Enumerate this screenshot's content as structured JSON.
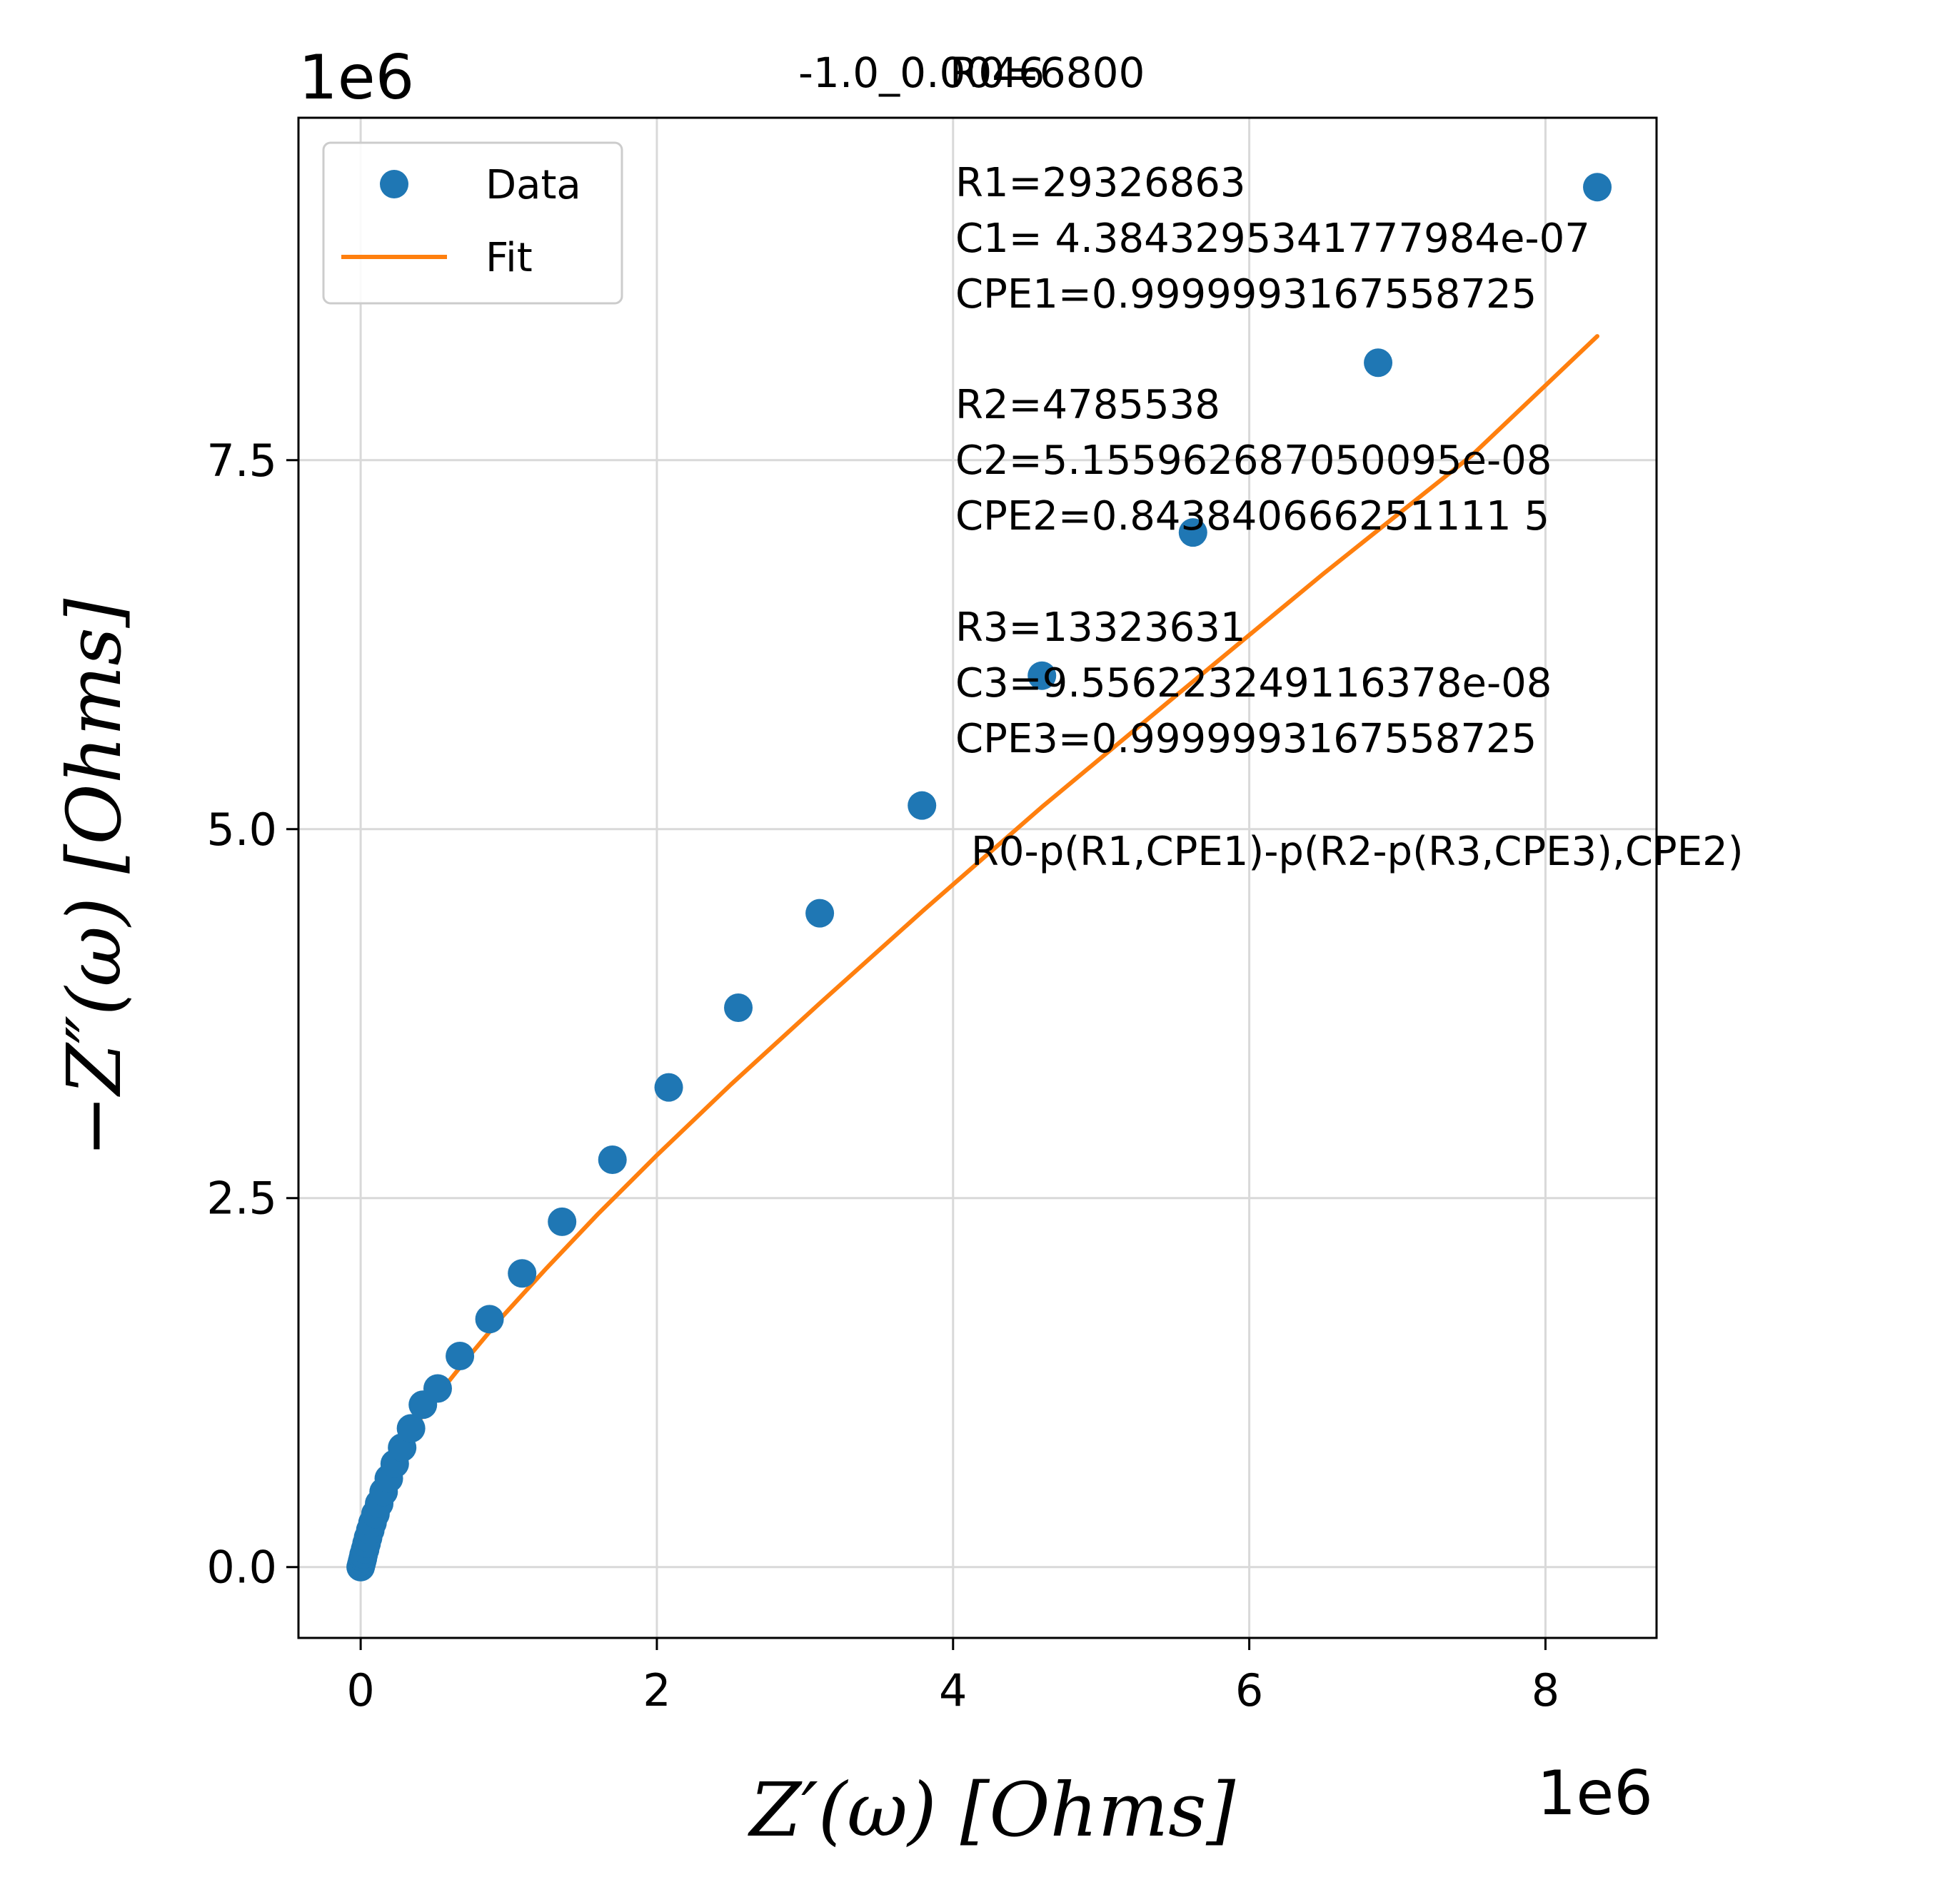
{
  "chart_data": {
    "type": "scatter",
    "title_overlap": [
      "-1.0_0.0046",
      "R0=6800"
    ],
    "xlabel": "Z′(ω) [Ohms]",
    "ylabel": "−Z″(ω) [Ohms]",
    "x_offset_label": "1e6",
    "y_offset_label": "1e6",
    "xlim": [
      -0.42,
      8.75
    ],
    "ylim": [
      -0.48,
      9.82
    ],
    "xticks": [
      0,
      2,
      4,
      6,
      8
    ],
    "xtick_labels": [
      "0",
      "2",
      "4",
      "6",
      "8"
    ],
    "yticks": [
      0.0,
      2.5,
      5.0,
      7.5
    ],
    "ytick_labels": [
      "0.0",
      "2.5",
      "5.0",
      "7.5"
    ],
    "grid": true,
    "legend": {
      "placement": "top-left",
      "entries": [
        {
          "label": "Data",
          "color": "#1f77b4",
          "marker": "circle"
        },
        {
          "label": "Fit",
          "color": "#ff7f0e",
          "marker": "line"
        }
      ]
    },
    "series": [
      {
        "name": "Data",
        "kind": "points",
        "color": "#1f77b4",
        "x": [
          0.0,
          0.005,
          0.01,
          0.015,
          0.02,
          0.03,
          0.04,
          0.05,
          0.065,
          0.08,
          0.1,
          0.125,
          0.155,
          0.19,
          0.23,
          0.28,
          0.34,
          0.42,
          0.52,
          0.67,
          0.87,
          1.09,
          1.36,
          1.7,
          2.08,
          2.55,
          3.1,
          3.79,
          4.6,
          5.62,
          6.87,
          8.35
        ],
        "y": [
          0.0,
          0.02,
          0.04,
          0.06,
          0.085,
          0.12,
          0.16,
          0.2,
          0.25,
          0.3,
          0.36,
          0.43,
          0.51,
          0.6,
          0.7,
          0.81,
          0.94,
          1.1,
          1.21,
          1.43,
          1.68,
          1.99,
          2.34,
          2.76,
          3.25,
          3.79,
          4.43,
          5.16,
          6.04,
          7.01,
          8.16,
          9.35
        ]
      },
      {
        "name": "Fit",
        "kind": "line",
        "color": "#ff7f0e",
        "x": [
          0.0,
          0.01,
          0.03,
          0.06,
          0.1,
          0.16,
          0.24,
          0.35,
          0.5,
          0.7,
          0.95,
          1.25,
          1.6,
          2.0,
          2.5,
          3.1,
          3.8,
          4.6,
          5.5,
          6.5,
          7.5,
          8.35
        ],
        "y": [
          0.0,
          0.08,
          0.18,
          0.3,
          0.42,
          0.57,
          0.74,
          0.93,
          1.14,
          1.39,
          1.69,
          2.02,
          2.39,
          2.79,
          3.27,
          3.82,
          4.45,
          5.15,
          5.9,
          6.73,
          7.53,
          8.34
        ]
      }
    ],
    "annotations": {
      "block1": [
        "R1=29326863",
        "C1= 4.384329534177798­4e-07",
        "CPE1=0.9999993167558725"
      ],
      "block2": [
        "R2=4785538",
        "C2=5.155962687050095e-08",
        "CPE2=0.843840666251111 5"
      ],
      "block3": [
        "R3=13323631",
        "C3=9.556223249116378e-08",
        "CPE3=0.9999993167558725"
      ],
      "circuit": "R0-p(R1,CPE1)-p(R2-p(R3,CPE3),CPE2)"
    }
  }
}
